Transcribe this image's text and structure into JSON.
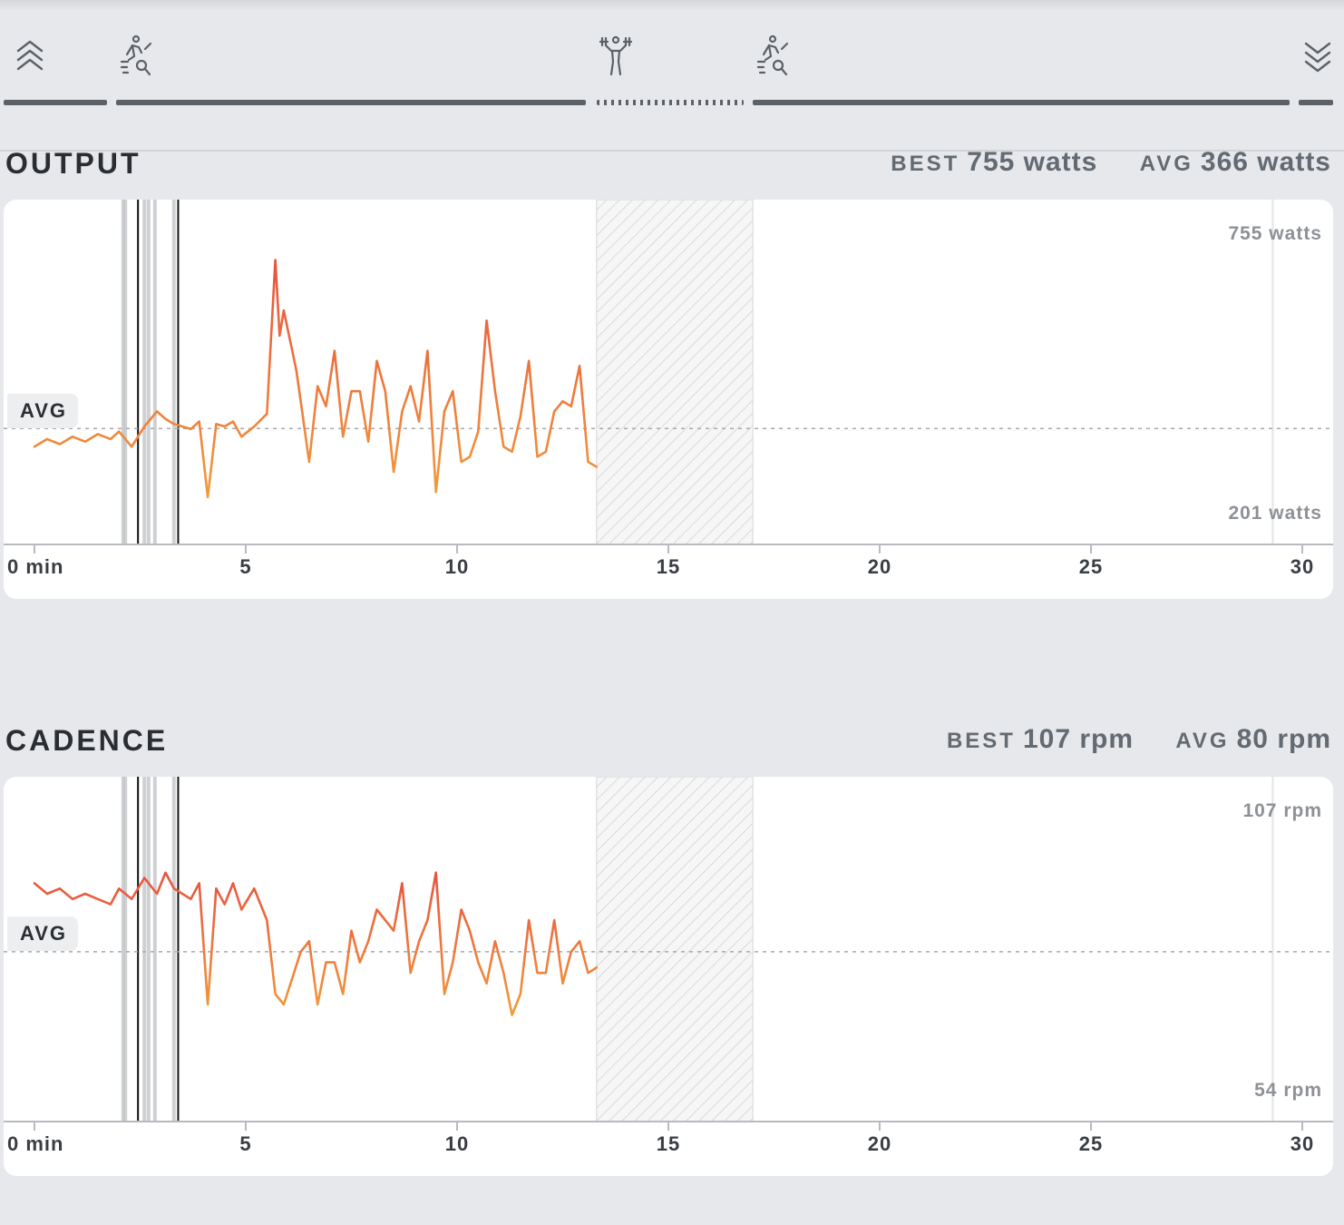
{
  "segments": {
    "icons": [
      {
        "icon": "chevrons-up-icon"
      },
      {
        "icon": "cycling-icon"
      },
      {
        "icon": "strength-icon"
      },
      {
        "icon": "cycling-icon"
      },
      {
        "icon": "chevrons-down-icon"
      }
    ]
  },
  "colors": {
    "line_high": "#e8533f",
    "line_low": "#f39a3a",
    "axis": "#b7bbc0",
    "avg_line": "#a6a9ad",
    "text_muted": "#8d9196"
  },
  "output": {
    "title": "OUTPUT",
    "best_label": "BEST",
    "best_value": "755 watts",
    "avg_label": "AVG",
    "avg_value": "366 watts",
    "avg_tag": "AVG",
    "max_label": "755 watts",
    "min_label": "201 watts"
  },
  "cadence": {
    "title": "CADENCE",
    "best_label": "BEST",
    "best_value": "107 rpm",
    "avg_label": "AVG",
    "avg_value": "80 rpm",
    "avg_tag": "AVG",
    "max_label": "107 rpm",
    "min_label": "54 rpm"
  },
  "chart_data": [
    {
      "type": "line",
      "title": "OUTPUT",
      "unit": "watts",
      "x_ticks": [
        "0 min",
        "5",
        "10",
        "15",
        "20",
        "25",
        "30"
      ],
      "xlim": [
        0,
        30
      ],
      "ylim": [
        201,
        755
      ],
      "avg": 366,
      "gap": [
        13.3,
        17.0
      ],
      "markers_thin": [
        2.1,
        2.15,
        2.6,
        2.7,
        2.85,
        3.3
      ],
      "markers_dark": [
        2.45,
        3.4
      ],
      "series": [
        {
          "x": [
            0,
            0.3,
            0.6,
            0.9,
            1.2,
            1.5,
            1.8,
            2.0,
            2.3,
            2.6,
            2.9,
            3.1,
            3.3,
            3.5,
            3.7,
            3.9,
            4.1,
            4.3,
            4.5,
            4.7,
            4.9,
            5.2,
            5.5,
            5.7,
            5.8,
            5.9,
            6.0,
            6.1,
            6.2,
            6.3,
            6.5,
            6.7,
            6.9,
            7.1,
            7.3,
            7.5,
            7.7,
            7.9,
            8.1,
            8.3,
            8.5,
            8.7,
            8.9,
            9.1,
            9.3,
            9.5,
            9.7,
            9.9,
            10.1,
            10.3,
            10.5,
            10.7,
            10.9,
            11.1,
            11.3,
            11.5,
            11.7,
            11.9,
            12.1,
            12.3,
            12.5,
            12.7,
            12.9,
            13.1,
            13.3
          ],
          "y": [
            330,
            345,
            335,
            350,
            340,
            355,
            345,
            360,
            330,
            370,
            400,
            385,
            375,
            370,
            365,
            380,
            230,
            375,
            370,
            380,
            350,
            370,
            395,
            700,
            550,
            600,
            560,
            520,
            480,
            420,
            300,
            450,
            410,
            520,
            350,
            440,
            440,
            340,
            500,
            440,
            280,
            400,
            450,
            380,
            520,
            240,
            400,
            440,
            300,
            310,
            360,
            580,
            440,
            330,
            320,
            390,
            500,
            310,
            320,
            400,
            420,
            410,
            490,
            300,
            290
          ]
        }
      ]
    },
    {
      "type": "line",
      "title": "CADENCE",
      "unit": "rpm",
      "x_ticks": [
        "0 min",
        "5",
        "10",
        "15",
        "20",
        "25",
        "30"
      ],
      "xlim": [
        0,
        30
      ],
      "ylim": [
        54,
        107
      ],
      "avg": 80,
      "gap": [
        13.3,
        17.0
      ],
      "markers_thin": [
        2.1,
        2.15,
        2.6,
        2.7,
        2.85,
        3.3
      ],
      "markers_dark": [
        2.45,
        3.4
      ],
      "series": [
        {
          "x": [
            0,
            0.3,
            0.6,
            0.9,
            1.2,
            1.5,
            1.8,
            2.0,
            2.3,
            2.6,
            2.9,
            3.1,
            3.3,
            3.5,
            3.7,
            3.9,
            4.1,
            4.3,
            4.5,
            4.7,
            4.9,
            5.2,
            5.5,
            5.7,
            5.9,
            6.1,
            6.3,
            6.5,
            6.7,
            6.9,
            7.1,
            7.3,
            7.5,
            7.7,
            7.9,
            8.1,
            8.3,
            8.5,
            8.7,
            8.9,
            9.1,
            9.3,
            9.5,
            9.7,
            9.9,
            10.1,
            10.3,
            10.5,
            10.7,
            10.9,
            11.1,
            11.3,
            11.5,
            11.7,
            11.9,
            12.1,
            12.3,
            12.5,
            12.7,
            12.9,
            13.1,
            13.3
          ],
          "y": [
            93,
            91,
            92,
            90,
            91,
            90,
            89,
            92,
            90,
            94,
            91,
            95,
            92,
            91,
            90,
            93,
            70,
            92,
            89,
            93,
            88,
            92,
            86,
            72,
            70,
            75,
            80,
            82,
            70,
            78,
            78,
            72,
            84,
            78,
            82,
            88,
            86,
            84,
            93,
            76,
            82,
            86,
            95,
            72,
            78,
            88,
            84,
            78,
            74,
            82,
            76,
            68,
            72,
            86,
            76,
            76,
            86,
            74,
            80,
            82,
            76,
            77
          ]
        }
      ]
    }
  ]
}
